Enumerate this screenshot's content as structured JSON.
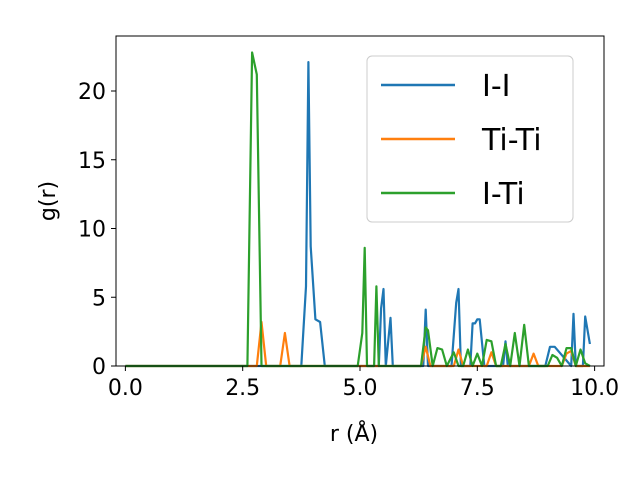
{
  "chart_data": {
    "type": "line",
    "xlabel": "r (Å)",
    "ylabel": "g(r)",
    "xlim": [
      -0.2,
      10.2
    ],
    "ylim": [
      0,
      24
    ],
    "xticks": [
      0.0,
      2.5,
      5.0,
      7.5,
      10.0
    ],
    "xtick_labels": [
      "0.0",
      "2.5",
      "5.0",
      "7.5",
      "10.0"
    ],
    "yticks": [
      0,
      5,
      10,
      15,
      20
    ],
    "ytick_labels": [
      "0",
      "5",
      "10",
      "15",
      "20"
    ],
    "grid": false,
    "legend_position": "top-right",
    "series": [
      {
        "name": "I-I",
        "color": "#1f77b4",
        "x": [
          0.0,
          3.75,
          3.85,
          3.9,
          3.95,
          4.05,
          4.15,
          4.25,
          5.4,
          5.45,
          5.5,
          5.55,
          5.65,
          5.7,
          5.8,
          6.35,
          6.4,
          6.45,
          6.5,
          6.95,
          7.05,
          7.1,
          7.15,
          7.35,
          7.4,
          7.45,
          7.5,
          7.55,
          7.65,
          7.75,
          8.05,
          8.1,
          8.15,
          8.95,
          9.05,
          9.15,
          9.5,
          9.55,
          9.6,
          9.75,
          9.8,
          9.9
        ],
        "y": [
          0.0,
          0.0,
          5.8,
          22.1,
          8.7,
          3.4,
          3.2,
          0.0,
          0.0,
          4.2,
          5.6,
          0.0,
          3.5,
          0.0,
          0.0,
          0.0,
          4.1,
          0.0,
          0.0,
          0.0,
          4.6,
          5.6,
          0.0,
          0.0,
          3.1,
          3.1,
          3.4,
          3.4,
          0.0,
          0.0,
          0.0,
          1.8,
          0.0,
          0.0,
          1.4,
          1.4,
          0.0,
          3.8,
          0.0,
          0.0,
          3.6,
          1.6
        ]
      },
      {
        "name": "Ti-Ti",
        "color": "#ff7f0e",
        "x": [
          0.0,
          2.8,
          2.9,
          3.0,
          3.3,
          3.4,
          3.5,
          6.3,
          6.4,
          6.5,
          7.0,
          7.1,
          7.2,
          7.7,
          7.8,
          7.9,
          8.6,
          8.7,
          8.8,
          9.3,
          9.4,
          9.5,
          9.6,
          9.8,
          9.9
        ],
        "y": [
          0.0,
          0.0,
          3.2,
          0.0,
          0.0,
          2.4,
          0.0,
          0.0,
          1.4,
          0.0,
          0.0,
          1.2,
          0.0,
          0.0,
          1.0,
          0.0,
          0.0,
          0.9,
          0.0,
          0.0,
          0.9,
          1.1,
          0.0,
          0.0,
          0.0
        ]
      },
      {
        "name": "I-Ti",
        "color": "#2ca02c",
        "x": [
          0.0,
          2.6,
          2.7,
          2.8,
          2.9,
          4.95,
          5.05,
          5.1,
          5.15,
          5.3,
          5.35,
          5.4,
          5.45,
          6.3,
          6.4,
          6.45,
          6.55,
          6.65,
          6.75,
          6.85,
          7.0,
          7.1,
          7.2,
          7.3,
          7.4,
          7.5,
          7.6,
          7.7,
          7.8,
          7.9,
          8.0,
          8.1,
          8.2,
          8.3,
          8.4,
          8.5,
          8.6,
          8.7,
          8.8,
          8.9,
          9.0,
          9.1,
          9.2,
          9.3,
          9.4,
          9.5,
          9.6,
          9.7,
          9.8,
          9.9
        ],
        "y": [
          0.0,
          0.0,
          22.8,
          21.2,
          0.0,
          0.0,
          2.4,
          8.6,
          0.0,
          0.0,
          5.8,
          0.0,
          0.0,
          0.0,
          2.8,
          2.6,
          0.0,
          1.3,
          1.2,
          0.0,
          1.0,
          0.0,
          0.0,
          1.2,
          0.0,
          0.9,
          0.0,
          1.9,
          1.8,
          0.0,
          0.0,
          1.6,
          0.0,
          2.4,
          0.0,
          3.0,
          0.0,
          0.0,
          0.0,
          0.0,
          0.0,
          0.8,
          0.6,
          0.0,
          1.3,
          1.3,
          0.0,
          1.2,
          0.2,
          0.0
        ]
      }
    ]
  }
}
